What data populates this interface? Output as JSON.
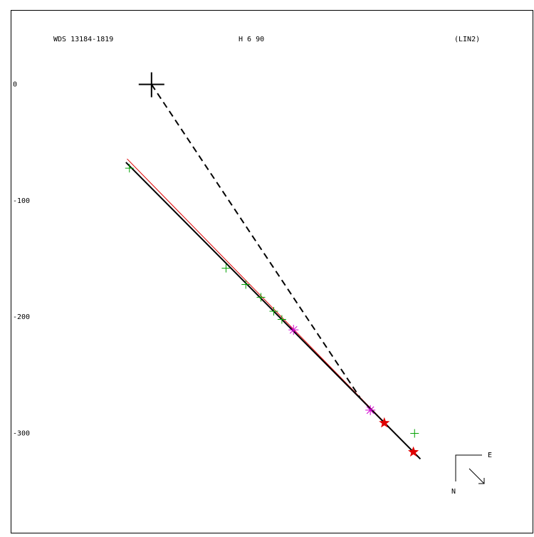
{
  "chart_data": {
    "type": "scatter",
    "title": "WDS 13184-1819",
    "subtitle": "H 6  90",
    "annotation": "(LIN2)",
    "xlim": [
      -121,
      328
    ],
    "ylim": [
      64,
      -386
    ],
    "yticks": [
      0,
      -100,
      -200,
      -300
    ],
    "groups": [
      {
        "marker": "plus",
        "color": "#00a000",
        "x": [
          -19,
          64,
          81,
          94,
          105,
          112,
          226
        ],
        "y": [
          -72,
          -158,
          -172,
          -183,
          -195,
          -202,
          -300
        ]
      },
      {
        "marker": "asterisk",
        "color": "#d000d0",
        "x": [
          122,
          188
        ],
        "y": [
          -211,
          -280
        ]
      },
      {
        "marker": "star",
        "color": "#e00000",
        "x": [
          200,
          225
        ],
        "y": [
          -291,
          -316
        ]
      },
      {
        "marker": "cross",
        "color": "#000000",
        "x": [
          0
        ],
        "y": [
          0
        ]
      }
    ],
    "lines": [
      {
        "color": "#e00000",
        "dash": false,
        "width": 1,
        "x": [
          -21,
          228
        ],
        "y": [
          -64,
          -319
        ]
      },
      {
        "color": "#000000",
        "dash": false,
        "width": 2,
        "x": [
          -22,
          231
        ],
        "y": [
          -67,
          -322
        ]
      },
      {
        "color": "#000000",
        "dash": true,
        "width": 2,
        "x": [
          0,
          179
        ],
        "y": [
          0,
          -269
        ]
      }
    ],
    "compass": {
      "east": "E",
      "north": "N"
    }
  }
}
